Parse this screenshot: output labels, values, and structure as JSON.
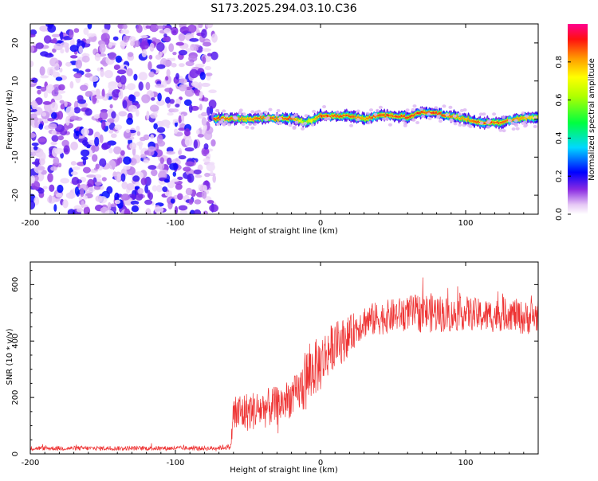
{
  "title": "S173.2025.294.03.10.C36",
  "chart_data": [
    {
      "type": "heatmap",
      "xlabel": "Height of straight line (km)",
      "ylabel": "Frequency (Hz)",
      "xlim": [
        -200,
        150
      ],
      "ylim": [
        -25,
        25
      ],
      "xticks": [
        -200,
        -100,
        0,
        100
      ],
      "yticks": [
        -20,
        -10,
        0,
        10,
        20
      ],
      "noise_region_x": [
        -200,
        -73
      ],
      "signal_track": {
        "x": [
          -73,
          -60,
          -50,
          -40,
          -30,
          -20,
          -10,
          0,
          10,
          20,
          30,
          40,
          50,
          60,
          70,
          80,
          90,
          100,
          110,
          120,
          130,
          140,
          150
        ],
        "freq": [
          0.0,
          0.2,
          0.0,
          0.3,
          0.0,
          0.3,
          -1.0,
          0.8,
          0.8,
          0.8,
          0.0,
          1.0,
          0.8,
          0.5,
          2.0,
          1.5,
          0.8,
          0.0,
          -0.8,
          -1.0,
          -0.5,
          0.2,
          0.3
        ],
        "amplitude": [
          0.9,
          0.85,
          0.8,
          0.9,
          0.85,
          0.9,
          0.6,
          0.9,
          0.95,
          0.9,
          0.8,
          0.95,
          0.95,
          0.9,
          0.95,
          0.9,
          0.85,
          0.8,
          0.9,
          0.9,
          0.85,
          0.8,
          0.7
        ]
      },
      "colorbar": {
        "label": "Normalized spectral amplitude",
        "ticks": [
          0,
          0.2,
          0.4,
          0.6,
          0.8
        ],
        "tick_labels": [
          "0.0",
          "0.2",
          "0.4",
          "0.6",
          "0.8"
        ],
        "range": [
          0,
          1
        ]
      }
    },
    {
      "type": "line",
      "xlabel": "Height of straight line (km)",
      "ylabel": "SNR (10 * v/v)",
      "xlim": [
        -200,
        150
      ],
      "ylim": [
        0,
        680
      ],
      "xticks": [
        -200,
        -100,
        0,
        100
      ],
      "yticks": [
        0,
        200,
        400,
        600
      ],
      "color": "#ee3333",
      "series": [
        {
          "name": "SNR",
          "x": [
            -200,
            -150,
            -100,
            -75,
            -62,
            -60,
            -50,
            -40,
            -30,
            -20,
            -15,
            -10,
            -5,
            0,
            5,
            10,
            15,
            20,
            25,
            30,
            40,
            50,
            60,
            70,
            80,
            90,
            100,
            110,
            120,
            130,
            140,
            150
          ],
          "values": [
            20,
            20,
            20,
            20,
            25,
            140,
            150,
            160,
            170,
            200,
            220,
            260,
            300,
            320,
            360,
            390,
            400,
            420,
            450,
            470,
            480,
            490,
            500,
            500,
            500,
            490,
            500,
            490,
            490,
            500,
            480,
            490
          ],
          "noise": [
            8,
            8,
            8,
            8,
            10,
            80,
            70,
            70,
            70,
            70,
            70,
            120,
            100,
            100,
            90,
            80,
            80,
            70,
            60,
            60,
            60,
            60,
            60,
            70,
            70,
            60,
            60,
            60,
            60,
            60,
            60,
            60
          ]
        }
      ]
    }
  ]
}
